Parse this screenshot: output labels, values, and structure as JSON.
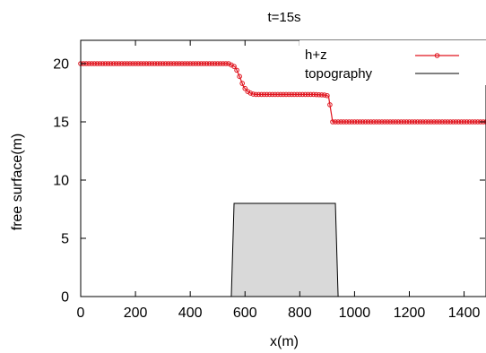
{
  "chart_data": {
    "type": "line",
    "title": "t=15s",
    "xlabel": "x(m)",
    "ylabel": "free surface(m)",
    "xlim": [
      0,
      1480
    ],
    "ylim": [
      0,
      22
    ],
    "xticks": [
      0,
      200,
      400,
      600,
      800,
      1000,
      1200,
      1400
    ],
    "yticks": [
      0,
      5,
      10,
      15,
      20
    ],
    "xtick_labels": [
      "0",
      "200",
      "400",
      "600",
      "800",
      "1000",
      "1200",
      "1400"
    ],
    "ytick_labels": [
      "0",
      "5",
      "10",
      "15",
      "20"
    ],
    "legend_position": "top-right",
    "series": [
      {
        "name": "h+z",
        "color": "#e0141e",
        "marker": "circle",
        "x": [
          0,
          540,
          565,
          580,
          595,
          610,
          625,
          640,
          660,
          700,
          750,
          800,
          850,
          895,
          905,
          920,
          1000,
          1100,
          1200,
          1300,
          1400,
          1480
        ],
        "y": [
          20.0,
          20.0,
          19.7,
          18.9,
          18.0,
          17.6,
          17.4,
          17.35,
          17.35,
          17.35,
          17.35,
          17.35,
          17.35,
          17.3,
          17.2,
          15.0,
          15.0,
          15.0,
          15.0,
          15.0,
          15.0,
          15.0
        ]
      },
      {
        "name": "topography",
        "color": "#000000",
        "fill": "#d9d9d9",
        "x": [
          0,
          550,
          560,
          930,
          940,
          1480
        ],
        "y": [
          0,
          0,
          8,
          8,
          0,
          0
        ]
      }
    ]
  }
}
